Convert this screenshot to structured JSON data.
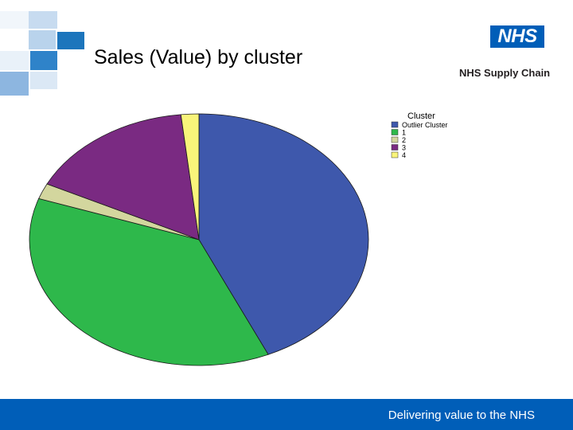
{
  "title": "Sales (Value) by cluster",
  "logo": {
    "text": "NHS",
    "subtitle": "NHS Supply Chain",
    "color": "#005eb8"
  },
  "footer": {
    "tagline": "Delivering value to the NHS",
    "color": "#005eb8"
  },
  "chart_data": {
    "type": "pie",
    "legend_title": "Cluster",
    "legend_position": "top-right",
    "slices": [
      {
        "label": "Outlier Cluster",
        "value": 43.3,
        "color": "#3e58ac"
      },
      {
        "label": "1",
        "value": 37.0,
        "color": "#2eb84b"
      },
      {
        "label": "2",
        "value": 2.0,
        "color": "#d3d69e"
      },
      {
        "label": "3",
        "value": 16.0,
        "color": "#7a2a82"
      },
      {
        "label": "4",
        "value": 1.7,
        "color": "#f9f47a"
      }
    ]
  }
}
